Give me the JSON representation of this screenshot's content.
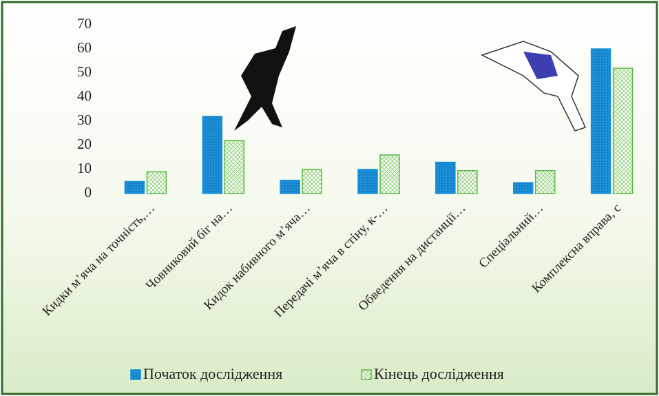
{
  "chart_data": {
    "type": "bar",
    "categories": [
      "Кидки м’яча на точність,…",
      "Човниковий біг на…",
      "Кидок набивного м’яча…",
      "Передачі м’яча в стіну, к-…",
      "Обведення на дистанції…",
      "Спеціальний…",
      "Комплексна вправа, с"
    ],
    "series": [
      {
        "name": "Початок дослідження",
        "color": "#1b8fd8",
        "values": [
          5,
          32,
          5.5,
          10,
          13,
          4.5,
          60
        ]
      },
      {
        "name": "Кінець дослідження",
        "color": "#5cb848",
        "values": [
          9,
          22,
          10,
          16,
          9.5,
          9.5,
          52
        ]
      }
    ],
    "ylim": [
      0,
      70
    ],
    "yticks": [
      0,
      10,
      20,
      30,
      40,
      50,
      60,
      70
    ],
    "legend": "bottom"
  }
}
